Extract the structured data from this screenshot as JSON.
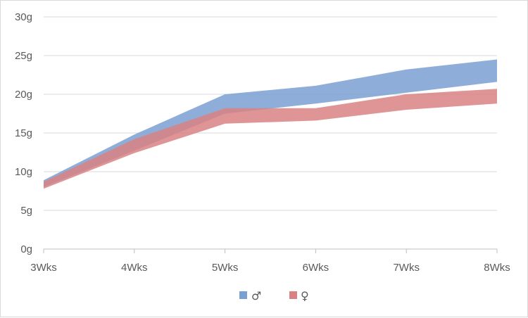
{
  "chart_data": {
    "type": "area",
    "title": "",
    "xlabel": "",
    "ylabel": "",
    "categories": [
      "3Wks",
      "4Wks",
      "5Wks",
      "6Wks",
      "7Wks",
      "8Wks"
    ],
    "yticks": [
      "0g",
      "5g",
      "10g",
      "15g",
      "20g",
      "25g",
      "30g"
    ],
    "ylim": [
      0,
      30
    ],
    "grid": true,
    "legend": "bottom",
    "series": [
      {
        "name": "♂",
        "color": "#7aa0d2",
        "lower": [
          8.0,
          12.7,
          17.5,
          18.8,
          20.2,
          21.6
        ],
        "upper": [
          8.9,
          14.8,
          20.0,
          21.1,
          23.2,
          24.5
        ]
      },
      {
        "name": "♀",
        "color": "#d98282",
        "lower": [
          7.8,
          12.4,
          16.2,
          16.6,
          18.0,
          18.8
        ],
        "upper": [
          8.7,
          14.2,
          18.2,
          18.2,
          20.0,
          20.7
        ]
      }
    ]
  }
}
